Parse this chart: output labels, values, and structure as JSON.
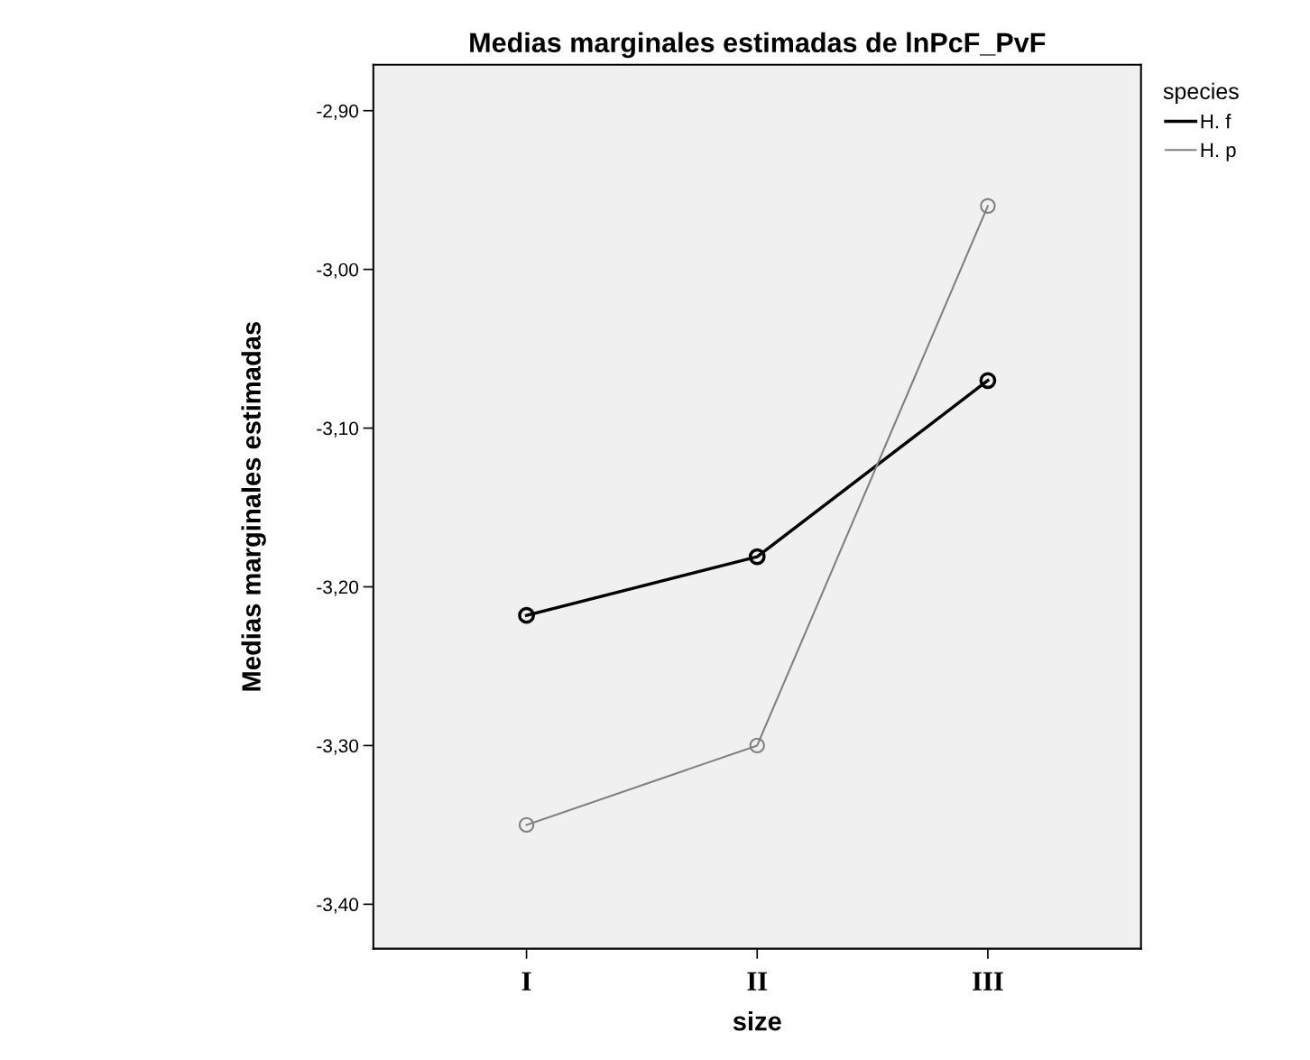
{
  "chart_data": {
    "type": "line",
    "title": "Medias marginales estimadas de lnPcF_PvF",
    "xlabel": "size",
    "ylabel": "Medias marginales estimadas",
    "legend_title": "species",
    "categories": [
      "I",
      "II",
      "III"
    ],
    "series": [
      {
        "name": "H. f",
        "color": "#000000",
        "values": [
          -3.218,
          -3.181,
          -3.07
        ]
      },
      {
        "name": "H. p",
        "color": "#808080",
        "values": [
          -3.35,
          -3.3,
          -2.96
        ]
      }
    ],
    "ylim": [
      -3.428,
      -2.871
    ],
    "yticks": [
      {
        "value": -3.4,
        "label": "-3,40"
      },
      {
        "value": -3.3,
        "label": "-3,30"
      },
      {
        "value": -3.2,
        "label": "-3,20"
      },
      {
        "value": -3.1,
        "label": "-3,10"
      },
      {
        "value": -3.0,
        "label": "-3,00"
      },
      {
        "value": -2.9,
        "label": "-2,90"
      }
    ],
    "marker": "circle",
    "line_style": "solid",
    "grid": false,
    "legend": "top right"
  }
}
